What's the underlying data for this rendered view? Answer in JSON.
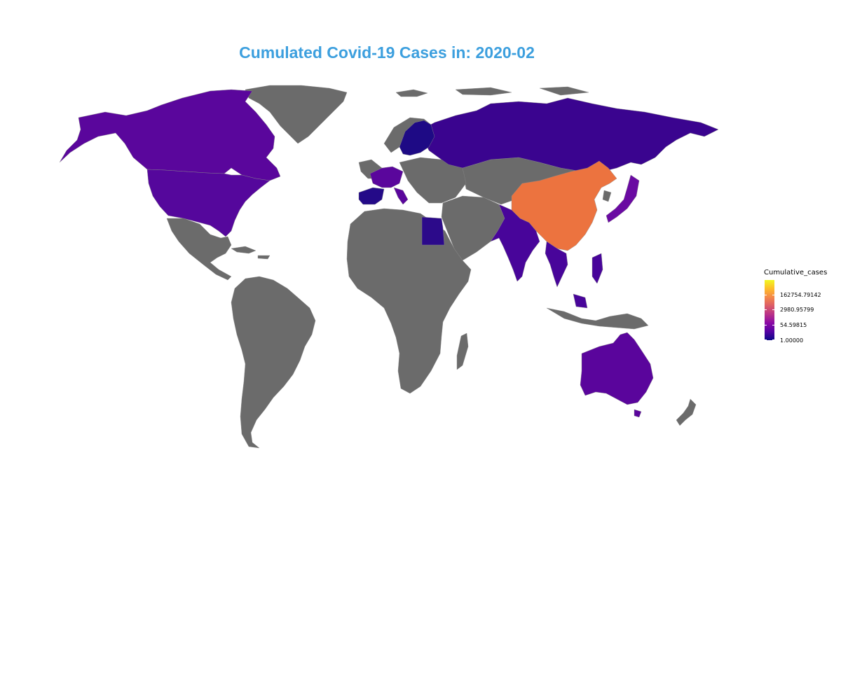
{
  "title": "Cumulated Covid-19 Cases in: 2020-02",
  "colors": {
    "title": "#3c9fde",
    "no_data": "#6b6b6b",
    "border": "#8a8a8a"
  },
  "legend": {
    "title": "Cumulative_cases",
    "ticks": [
      "162754.79142",
      "2980.95799",
      "54.59815",
      "1.00000"
    ],
    "scale": "log",
    "palette": [
      "#0d0887",
      "#5402a3",
      "#8b0aa5",
      "#b83289",
      "#db5c68",
      "#f48849",
      "#febc2a",
      "#f0f921"
    ]
  },
  "regions": [
    {
      "name": "China",
      "color": "#ec733f"
    },
    {
      "name": "Russia",
      "color": "#3a048f"
    },
    {
      "name": "Canada",
      "color": "#5a069c"
    },
    {
      "name": "United States",
      "color": "#55079c"
    },
    {
      "name": "Australia",
      "color": "#5a059c"
    },
    {
      "name": "India",
      "color": "#48059a"
    },
    {
      "name": "Sweden",
      "color": "#1e0a85"
    },
    {
      "name": "Spain",
      "color": "#240a88"
    },
    {
      "name": "Egypt",
      "color": "#2c0a8a"
    },
    {
      "name": "Japan",
      "color": "#6a0aa2"
    }
  ]
}
